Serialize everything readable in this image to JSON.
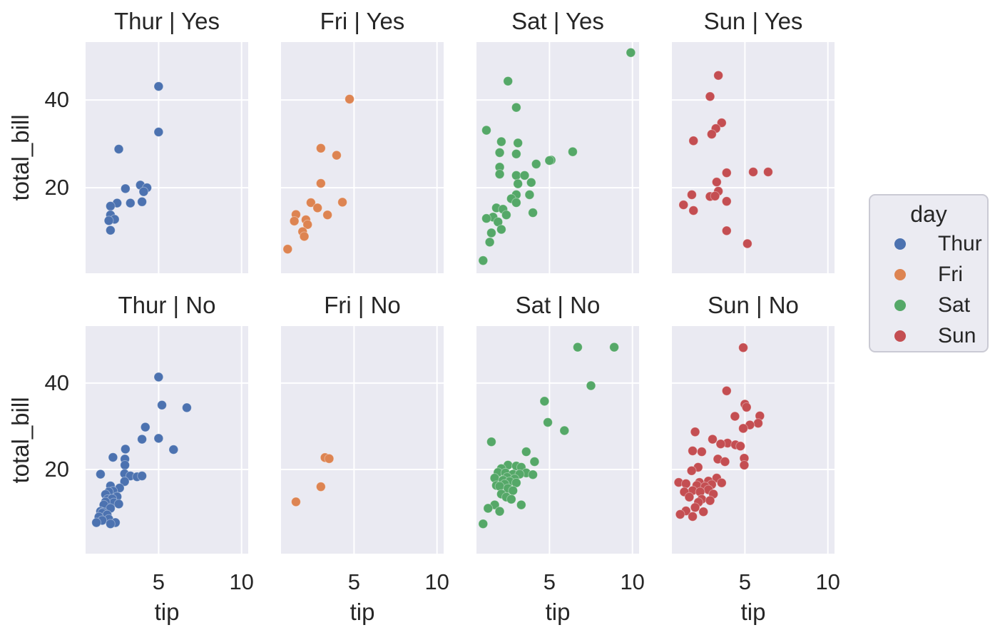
{
  "chart_data": {
    "type": "scatter",
    "facet_by": "day | smoker",
    "xlabel": "tip",
    "ylabel": "total_bill",
    "xlim": [
      0.6,
      10.4
    ],
    "ylim": [
      0.5,
      53.2
    ],
    "x_ticks": [
      5,
      10
    ],
    "y_ticks": [
      20,
      40
    ],
    "grid": true,
    "style": {
      "panel_bg": "#eaeaf2",
      "grid_color": "#ffffff",
      "text_color": "#262626",
      "legend_bg": "#ebebf2",
      "legend_border": "#cacad4"
    },
    "palette": {
      "Thur": "#4c72b0",
      "Fri": "#dd8452",
      "Sat": "#55a868",
      "Sun": "#c44e52"
    },
    "legend": {
      "title": "day",
      "position": "right",
      "entries": [
        {
          "label": "Thur",
          "color": "#4c72b0"
        },
        {
          "label": "Fri",
          "color": "#dd8452"
        },
        {
          "label": "Sat",
          "color": "#55a868"
        },
        {
          "label": "Sun",
          "color": "#c44e52"
        }
      ]
    },
    "facets": [
      {
        "title": "Thur | Yes",
        "row": 0,
        "col": 0,
        "hue": "Thur",
        "points": [
          [
            5.0,
            43.1
          ],
          [
            5.0,
            32.7
          ],
          [
            2.6,
            28.8
          ],
          [
            3.0,
            19.8
          ],
          [
            3.9,
            20.6
          ],
          [
            4.3,
            20.0
          ],
          [
            4.1,
            19.1
          ],
          [
            4.0,
            16.8
          ],
          [
            3.3,
            16.5
          ],
          [
            2.5,
            16.5
          ],
          [
            2.1,
            15.8
          ],
          [
            2.1,
            13.8
          ],
          [
            2.35,
            12.8
          ],
          [
            2.0,
            12.5
          ],
          [
            2.1,
            10.3
          ]
        ]
      },
      {
        "title": "Fri | Yes",
        "row": 0,
        "col": 1,
        "hue": "Fri",
        "points": [
          [
            4.73,
            40.2
          ],
          [
            3.0,
            29.0
          ],
          [
            3.95,
            27.4
          ],
          [
            3.0,
            21.0
          ],
          [
            4.3,
            16.7
          ],
          [
            2.4,
            16.6
          ],
          [
            2.8,
            15.4
          ],
          [
            3.4,
            13.8
          ],
          [
            1.5,
            13.9
          ],
          [
            1.4,
            12.4
          ],
          [
            2.1,
            12.7
          ],
          [
            2.2,
            11.6
          ],
          [
            1.9,
            10.0
          ],
          [
            2.0,
            8.9
          ],
          [
            1.0,
            6.0
          ]
        ]
      },
      {
        "title": "Sat | Yes",
        "row": 0,
        "col": 2,
        "hue": "Sat",
        "points": [
          [
            9.9,
            50.8
          ],
          [
            2.5,
            44.3
          ],
          [
            3.0,
            38.3
          ],
          [
            1.2,
            33.1
          ],
          [
            2.1,
            30.5
          ],
          [
            3.1,
            30.2
          ],
          [
            2.0,
            28.0
          ],
          [
            3.0,
            27.7
          ],
          [
            6.4,
            28.2
          ],
          [
            5.1,
            26.3
          ],
          [
            5.0,
            26.2
          ],
          [
            4.2,
            25.4
          ],
          [
            2.0,
            24.7
          ],
          [
            2.0,
            23.1
          ],
          [
            3.0,
            22.8
          ],
          [
            3.5,
            22.8
          ],
          [
            3.9,
            21.2
          ],
          [
            3.1,
            20.9
          ],
          [
            3.0,
            18.4
          ],
          [
            3.8,
            18.4
          ],
          [
            2.7,
            17.5
          ],
          [
            3.0,
            16.6
          ],
          [
            1.8,
            15.4
          ],
          [
            2.2,
            15.1
          ],
          [
            4.0,
            14.3
          ],
          [
            2.4,
            13.8
          ],
          [
            1.6,
            13.3
          ],
          [
            1.2,
            13.0
          ],
          [
            1.9,
            12.2
          ],
          [
            2.1,
            10.5
          ],
          [
            1.5,
            9.7
          ],
          [
            1.4,
            7.6
          ],
          [
            1.0,
            3.4
          ]
        ]
      },
      {
        "title": "Sun | Yes",
        "row": 0,
        "col": 3,
        "hue": "Sun",
        "points": [
          [
            3.4,
            45.6
          ],
          [
            2.9,
            40.8
          ],
          [
            3.6,
            34.8
          ],
          [
            3.25,
            33.5
          ],
          [
            3.0,
            32.2
          ],
          [
            1.9,
            30.7
          ],
          [
            3.9,
            23.4
          ],
          [
            5.5,
            23.6
          ],
          [
            6.4,
            23.6
          ],
          [
            3.3,
            21.3
          ],
          [
            3.4,
            19.2
          ],
          [
            1.8,
            18.4
          ],
          [
            2.9,
            18.0
          ],
          [
            3.2,
            18.1
          ],
          [
            3.9,
            16.9
          ],
          [
            1.3,
            16.1
          ],
          [
            1.9,
            14.8
          ],
          [
            3.9,
            10.2
          ],
          [
            5.15,
            7.25
          ]
        ]
      },
      {
        "title": "Thur | No",
        "row": 1,
        "col": 0,
        "hue": "Thur",
        "points": [
          [
            5.0,
            41.4
          ],
          [
            5.2,
            34.9
          ],
          [
            6.7,
            34.3
          ],
          [
            4.2,
            29.8
          ],
          [
            4.0,
            27.0
          ],
          [
            5.0,
            27.2
          ],
          [
            5.9,
            24.6
          ],
          [
            3.0,
            24.7
          ],
          [
            2.25,
            22.8
          ],
          [
            2.97,
            22.4
          ],
          [
            2.97,
            21.0
          ],
          [
            1.5,
            18.9
          ],
          [
            2.95,
            19.0
          ],
          [
            3.3,
            18.5
          ],
          [
            3.7,
            18.3
          ],
          [
            4.0,
            18.5
          ],
          [
            2.95,
            17.2
          ],
          [
            2.1,
            16.2
          ],
          [
            2.65,
            15.7
          ],
          [
            2.25,
            15.0
          ],
          [
            2.0,
            14.8
          ],
          [
            1.8,
            14.2
          ],
          [
            2.5,
            13.7
          ],
          [
            1.93,
            13.1
          ],
          [
            2.2,
            13.2
          ],
          [
            2.3,
            12.3
          ],
          [
            1.8,
            12.5
          ],
          [
            2.6,
            12.0
          ],
          [
            1.7,
            11.8
          ],
          [
            2.1,
            11.0
          ],
          [
            1.5,
            10.3
          ],
          [
            1.66,
            10.1
          ],
          [
            1.6,
            9.9
          ],
          [
            1.9,
            9.5
          ],
          [
            1.4,
            9.0
          ],
          [
            2.0,
            8.5
          ],
          [
            1.6,
            8.2
          ],
          [
            1.25,
            7.7
          ],
          [
            2.4,
            7.7
          ],
          [
            2.1,
            7.4
          ]
        ]
      },
      {
        "title": "Fri | No",
        "row": 1,
        "col": 1,
        "hue": "Fri",
        "points": [
          [
            3.25,
            22.75
          ],
          [
            3.5,
            22.5
          ],
          [
            3.0,
            16.0
          ],
          [
            1.5,
            12.5
          ]
        ]
      },
      {
        "title": "Sat | No",
        "row": 1,
        "col": 2,
        "hue": "Sat",
        "points": [
          [
            6.7,
            48.3
          ],
          [
            8.9,
            48.3
          ],
          [
            7.5,
            39.4
          ],
          [
            4.7,
            35.8
          ],
          [
            4.9,
            30.9
          ],
          [
            5.9,
            29.0
          ],
          [
            1.5,
            26.4
          ],
          [
            3.6,
            24.1
          ],
          [
            4.1,
            21.8
          ],
          [
            2.5,
            21.0
          ],
          [
            3.0,
            20.8
          ],
          [
            3.3,
            20.5
          ],
          [
            2.1,
            20.2
          ],
          [
            1.9,
            19.3
          ],
          [
            2.35,
            19.2
          ],
          [
            3.6,
            19.2
          ],
          [
            2.8,
            18.9
          ],
          [
            3.2,
            18.9
          ],
          [
            4.0,
            18.8
          ],
          [
            2.45,
            18.2
          ],
          [
            1.7,
            18.0
          ],
          [
            2.9,
            17.8
          ],
          [
            2.2,
            17.5
          ],
          [
            2.6,
            17.2
          ],
          [
            3.0,
            16.9
          ],
          [
            2.3,
            16.6
          ],
          [
            1.8,
            16.3
          ],
          [
            2.0,
            16.1
          ],
          [
            2.5,
            15.6
          ],
          [
            2.8,
            15.1
          ],
          [
            2.1,
            14.3
          ],
          [
            2.4,
            13.6
          ],
          [
            2.7,
            13.1
          ],
          [
            3.3,
            11.8
          ],
          [
            1.7,
            11.8
          ],
          [
            1.3,
            11.0
          ],
          [
            2.0,
            10.3
          ],
          [
            1.0,
            7.4
          ]
        ]
      },
      {
        "title": "Sun | No",
        "row": 1,
        "col": 3,
        "hue": "Sun",
        "points": [
          [
            4.9,
            48.2
          ],
          [
            3.9,
            38.2
          ],
          [
            5.0,
            35.1
          ],
          [
            5.1,
            34.4
          ],
          [
            5.9,
            32.4
          ],
          [
            4.4,
            32.3
          ],
          [
            5.8,
            30.7
          ],
          [
            5.3,
            30.3
          ],
          [
            4.9,
            29.5
          ],
          [
            2.0,
            28.7
          ],
          [
            3.05,
            27.0
          ],
          [
            3.95,
            26.1
          ],
          [
            3.54,
            25.9
          ],
          [
            4.43,
            25.7
          ],
          [
            4.73,
            25.4
          ],
          [
            1.85,
            24.3
          ],
          [
            2.4,
            24.1
          ],
          [
            4.96,
            22.6
          ],
          [
            3.37,
            22.4
          ],
          [
            3.8,
            21.8
          ],
          [
            4.96,
            21.0
          ],
          [
            2.18,
            20.5
          ],
          [
            1.79,
            19.7
          ],
          [
            3.3,
            18.0
          ],
          [
            2.8,
            17.3
          ],
          [
            2.26,
            17.0
          ],
          [
            1.01,
            17.0
          ],
          [
            3.6,
            16.9
          ],
          [
            1.45,
            16.7
          ],
          [
            2.1,
            16.3
          ],
          [
            3.0,
            16.5
          ],
          [
            2.6,
            16.0
          ],
          [
            2.8,
            15.3
          ],
          [
            1.85,
            15.1
          ],
          [
            2.3,
            14.8
          ],
          [
            1.35,
            14.8
          ],
          [
            3.1,
            14.3
          ],
          [
            1.65,
            13.6
          ],
          [
            2.4,
            13.1
          ],
          [
            2.9,
            12.8
          ],
          [
            2.2,
            12.4
          ],
          [
            2.0,
            11.2
          ],
          [
            1.45,
            10.4
          ],
          [
            2.5,
            10.2
          ],
          [
            1.1,
            9.6
          ],
          [
            1.85,
            9.1
          ]
        ]
      }
    ]
  }
}
